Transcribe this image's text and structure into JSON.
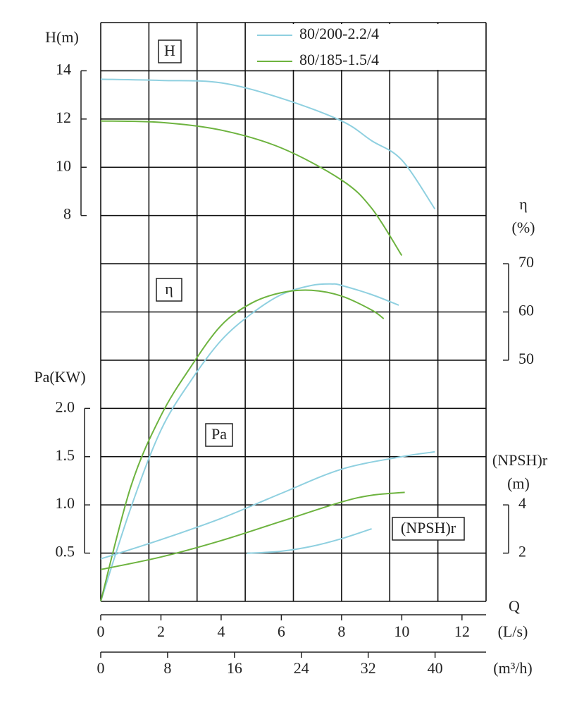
{
  "chart_data": {
    "type": "line",
    "grid": true,
    "xgrid": [
      0,
      1.6,
      3.2,
      4.8,
      6.4,
      8,
      9.6,
      11.2,
      12.8
    ],
    "ygrid": [
      16,
      14,
      12,
      10,
      8,
      6,
      4,
      2,
      0,
      -2,
      -4,
      -6,
      -8
    ],
    "x_label": "Q",
    "x_unit": "(L/s)",
    "xlim": [
      0,
      12.8
    ],
    "xticks": [
      0,
      2,
      4,
      6,
      8,
      10,
      12
    ],
    "x2_unit": "(m³/h)",
    "x2lim": [
      0,
      46.1
    ],
    "x2ticks": [
      0,
      8,
      16,
      24,
      32,
      40
    ],
    "legend": "top",
    "series": [
      {
        "name": "80/200-2.2/4",
        "color": "#8fd0e0"
      },
      {
        "name": "80/185-1.5/4",
        "color": "#6db33f"
      }
    ],
    "panels": [
      {
        "label": "H",
        "axis_label": [
          "H(m)"
        ],
        "side": "left",
        "ylim": [
          -8,
          16
        ],
        "yticks": [
          14,
          12,
          10,
          8
        ],
        "curves": [
          {
            "x": [
              0,
              2,
              4,
              6,
              8,
              9,
              10,
              11.1
            ],
            "values": [
              13.65,
              13.6,
              13.5,
              12.86,
              11.92,
              11.1,
              10.3,
              8.27
            ]
          },
          {
            "x": [
              0,
              2,
              4,
              6,
              8,
              9,
              10
            ],
            "values": [
              11.92,
              11.86,
              11.54,
              10.8,
              9.47,
              8.3,
              6.34
            ]
          }
        ]
      },
      {
        "label": "η",
        "axis_label": [
          "η",
          "(%)"
        ],
        "side": "right",
        "ylim": [
          0,
          120
        ],
        "yticks": [
          70,
          60,
          50
        ],
        "curves": [
          {
            "x": [
              0,
              1,
              2,
              3,
              4,
              5,
              6,
              7,
              7.7,
              8,
              9,
              9.9
            ],
            "values": [
              0,
              19.4,
              35.5,
              45.8,
              54.1,
              59.6,
              63.6,
              65.5,
              65.8,
              65.5,
              63.6,
              61.4
            ]
          },
          {
            "x": [
              0,
              1,
              2,
              3,
              4,
              5,
              6,
              7,
              8,
              9,
              9.4
            ],
            "values": [
              0,
              23.8,
              38.5,
              48.7,
              57.2,
              61.8,
              64.0,
              64.5,
              63.3,
              60.4,
              58.6
            ]
          }
        ]
      },
      {
        "label": "Pa",
        "axis_label": [
          "Pa(KW)"
        ],
        "side": "left",
        "ylim": [
          0,
          6
        ],
        "yticks": [
          {
            "value": 2,
            "label": "2.0"
          },
          1.5,
          {
            "value": 1,
            "label": "1.0"
          },
          0.5
        ],
        "curves": [
          {
            "x": [
              0,
              2,
              4,
              6,
              8,
              10,
              11.1
            ],
            "values": [
              0.44,
              0.64,
              0.86,
              1.12,
              1.37,
              1.5,
              1.55
            ]
          },
          {
            "x": [
              0,
              2,
              4,
              6,
              8,
              9,
              10.1
            ],
            "values": [
              0.33,
              0.46,
              0.63,
              0.83,
              1.03,
              1.1,
              1.13
            ]
          }
        ]
      },
      {
        "label": "(NPSH)r",
        "axis_label": [
          "(NPSH)r",
          "(m)"
        ],
        "side": "right",
        "ylim": [
          0,
          24
        ],
        "yticks": [
          4,
          2
        ],
        "curves": [
          {
            "x": [
              4.85,
              6,
              7,
              8,
              9
            ],
            "values": [
              1.99,
              2.08,
              2.28,
              2.6,
              3.01
            ]
          }
        ]
      }
    ]
  }
}
